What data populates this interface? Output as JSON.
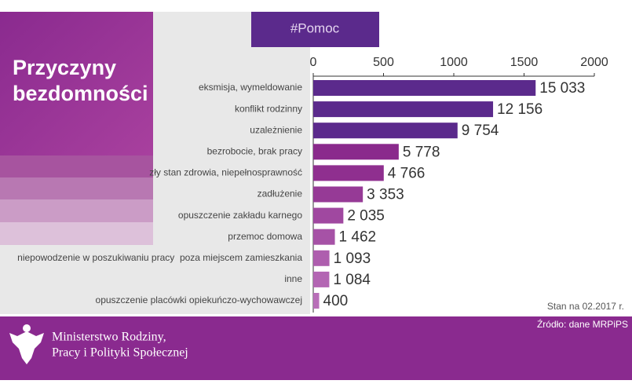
{
  "hashtag": "#Pomoc",
  "chart_data": {
    "type": "bar",
    "orientation": "horizontal",
    "title_lines": [
      "Przyczyny",
      "bezdomności"
    ],
    "categories": [
      "eksmisja, wymeldowanie",
      "konflikt rodzinny",
      "uzależnienie",
      "bezrobocie, brak pracy",
      "zły stan zdrowia, niepełnosprawność",
      "zadłużenie",
      "opuszczenie zakładu karnego",
      "przemoc domowa",
      "niepowodzenie w poszukiwaniu pracy  poza miejscem zamieszkania",
      "inne",
      "opuszczenie placówki opiekuńczo-wychowawczej"
    ],
    "values": [
      15033,
      12156,
      9754,
      5778,
      4766,
      3353,
      2035,
      1462,
      1093,
      1084,
      400
    ],
    "value_labels": [
      "15 033",
      "12 156",
      "9 754",
      "5 778",
      "4 766",
      "3 353",
      "2 035",
      "1 462",
      "1 093",
      "1 084",
      "400"
    ],
    "colors": [
      "#5b2a8c",
      "#5b2a8c",
      "#5b2a8c",
      "#8a2a8c",
      "#8f2f8f",
      "#963a96",
      "#a048a0",
      "#a652a6",
      "#ae5eae",
      "#b366b3",
      "#b86fb8"
    ],
    "axis": "x2",
    "xlim": [
      0,
      2000
    ],
    "xticks": [
      0,
      500,
      1000,
      1500,
      2000
    ],
    "x2lim": [
      0,
      19000
    ],
    "note": "Stan na 02.2017 r."
  },
  "footer": {
    "source": "Źródło: dane MRPiPS",
    "ministry_lines": [
      "Ministerstwo Rodziny,",
      "Pracy i Polityki Społecznej"
    ]
  }
}
